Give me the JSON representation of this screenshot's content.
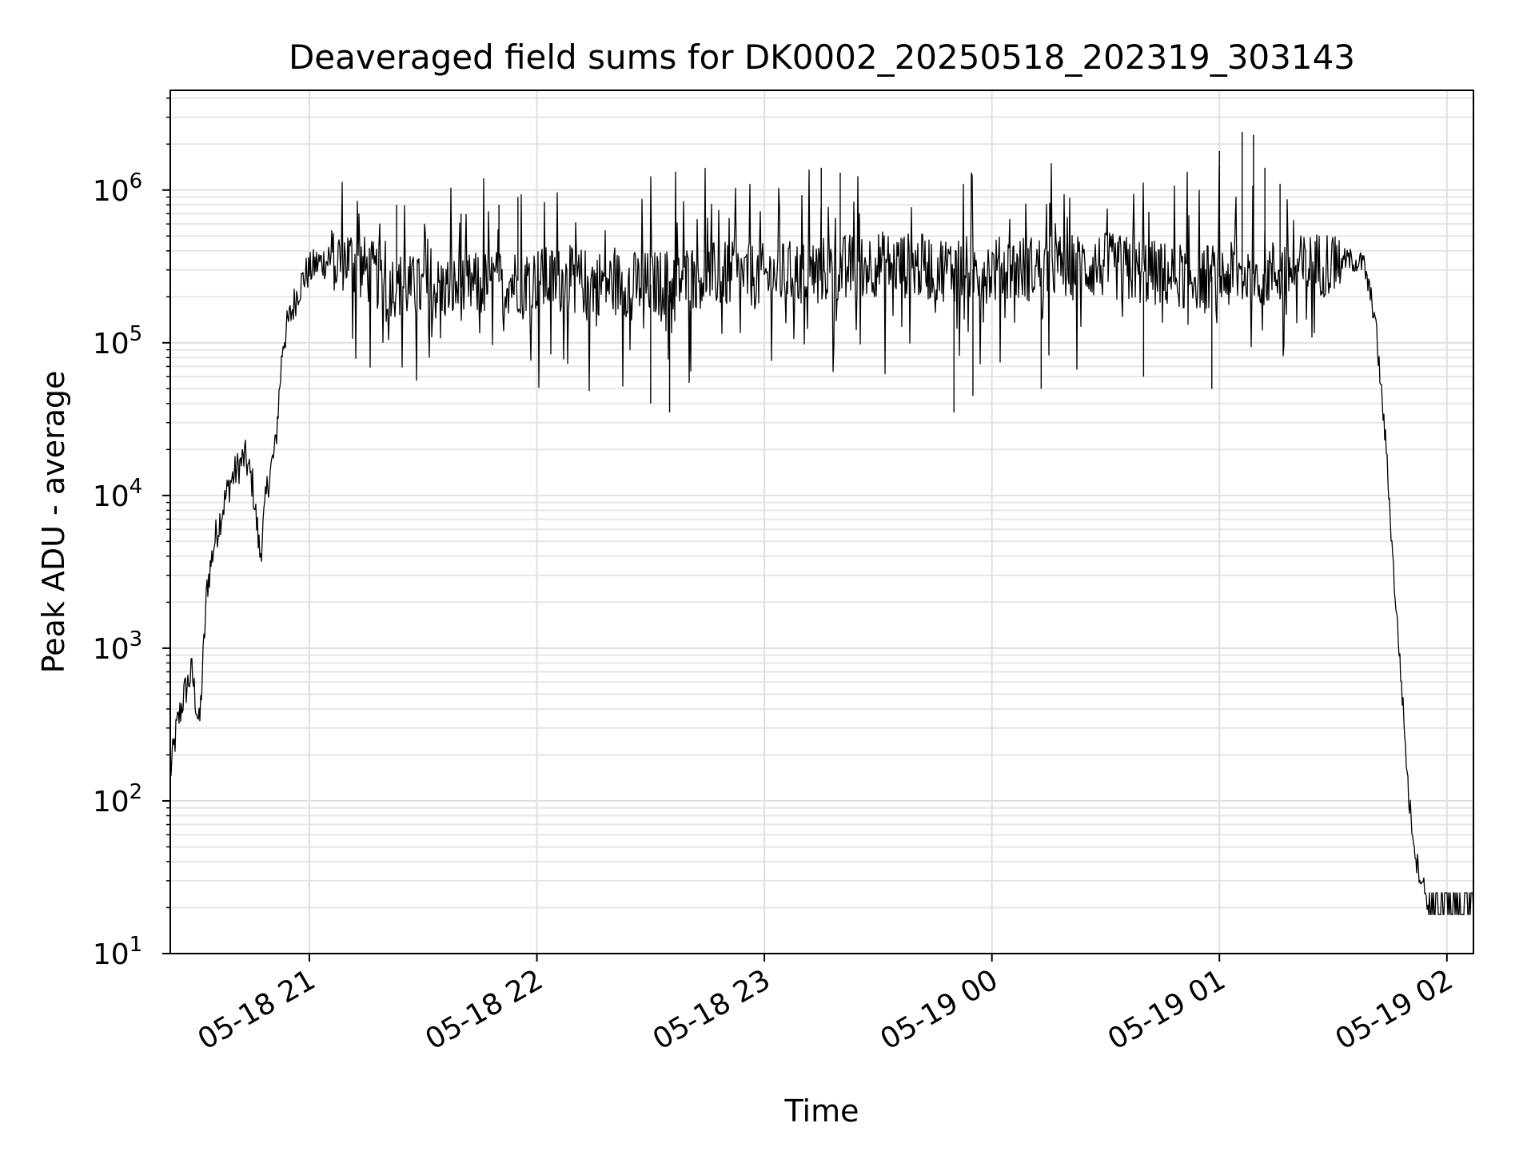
{
  "chart_data": {
    "type": "line",
    "title": "Deaveraged field sums for DK0002_20250518_202319_303143",
    "xlabel": "Time",
    "ylabel": "Peak ADU - average",
    "yscale": "log",
    "ylim": [
      10,
      4500000.0
    ],
    "xlim": [
      "2025-05-18 20:23:19",
      "2025-05-19 02:07:00"
    ],
    "grid": true,
    "x_tick_labels": [
      "05-18 21",
      "05-18 22",
      "05-18 23",
      "05-19 00",
      "05-19 01",
      "05-19 02"
    ],
    "x_ticks": [
      "2025-05-18 21:00",
      "2025-05-18 22:00",
      "2025-05-18 23:00",
      "2025-05-19 00:00",
      "2025-05-19 01:00",
      "2025-05-19 02:00"
    ],
    "y_tick_labels": [
      {
        "base": "10",
        "exp": "1"
      },
      {
        "base": "10",
        "exp": "2"
      },
      {
        "base": "10",
        "exp": "3"
      },
      {
        "base": "10",
        "exp": "4"
      },
      {
        "base": "10",
        "exp": "5"
      },
      {
        "base": "10",
        "exp": "6"
      }
    ],
    "series": [
      {
        "color": "#000000",
        "x": [
          "2025-05-18 20:23:19",
          "2025-05-18 20:25",
          "2025-05-18 20:27",
          "2025-05-18 20:29",
          "2025-05-18 20:31",
          "2025-05-18 20:33",
          "2025-05-18 20:35",
          "2025-05-18 20:37",
          "2025-05-18 20:39",
          "2025-05-18 20:41",
          "2025-05-18 20:43",
          "2025-05-18 20:45",
          "2025-05-18 20:47",
          "2025-05-18 20:49",
          "2025-05-18 20:51",
          "2025-05-18 20:53",
          "2025-05-18 20:55",
          "2025-05-18 20:57",
          "2025-05-18 20:59",
          "2025-05-18 21:02",
          "2025-05-18 21:06",
          "2025-05-18 21:10",
          "2025-05-18 21:15",
          "2025-05-18 21:20",
          "2025-05-18 21:30",
          "2025-05-18 21:40",
          "2025-05-18 21:50",
          "2025-05-18 22:00",
          "2025-05-18 22:15",
          "2025-05-18 22:30",
          "2025-05-18 22:45",
          "2025-05-18 23:00",
          "2025-05-18 23:15",
          "2025-05-18 23:30",
          "2025-05-18 23:45",
          "2025-05-19 00:00",
          "2025-05-19 00:15",
          "2025-05-19 00:30",
          "2025-05-19 00:45",
          "2025-05-19 01:00",
          "2025-05-19 01:15",
          "2025-05-19 01:25",
          "2025-05-19 01:30",
          "2025-05-19 01:34",
          "2025-05-19 01:38",
          "2025-05-19 01:41",
          "2025-05-19 01:44",
          "2025-05-19 01:46",
          "2025-05-19 01:48",
          "2025-05-19 01:50",
          "2025-05-19 01:52",
          "2025-05-19 01:55",
          "2025-05-19 02:00",
          "2025-05-19 02:07"
        ],
        "y": [
          150,
          300,
          500,
          700,
          300,
          2500,
          5000,
          8000,
          12000,
          15000,
          18000,
          12000,
          4000,
          12000,
          20000,
          100000,
          150000,
          220000,
          280000,
          330000,
          350000,
          360000,
          300000,
          250000,
          220000,
          230000,
          250000,
          260000,
          250000,
          240000,
          280000,
          270000,
          300000,
          330000,
          310000,
          300000,
          310000,
          320000,
          280000,
          270000,
          290000,
          320000,
          340000,
          350000,
          330000,
          150000,
          20000,
          3000,
          600,
          100,
          40,
          22,
          20,
          20
        ]
      }
    ],
    "spikes": [
      {
        "x": "2025-05-18 21:23",
        "y": 800000
      },
      {
        "x": "2025-05-18 21:40",
        "y": 700000
      },
      {
        "x": "2025-05-18 21:50",
        "y": 800000
      },
      {
        "x": "2025-05-18 21:55",
        "y": 900000
      },
      {
        "x": "2025-05-18 22:30",
        "y": 40000
      },
      {
        "x": "2025-05-18 22:35",
        "y": 35000
      },
      {
        "x": "2025-05-18 23:15",
        "y": 1400000
      },
      {
        "x": "2025-05-18 23:20",
        "y": 1300000
      },
      {
        "x": "2025-05-18 23:50",
        "y": 35000
      },
      {
        "x": "2025-05-18 23:55",
        "y": 45000
      },
      {
        "x": "2025-05-19 00:13",
        "y": 50000
      },
      {
        "x": "2025-05-19 00:40",
        "y": 60000
      },
      {
        "x": "2025-05-19 00:58",
        "y": 50000
      },
      {
        "x": "2025-05-19 01:00",
        "y": 1800000
      },
      {
        "x": "2025-05-19 01:06",
        "y": 2400000
      },
      {
        "x": "2025-05-19 01:09",
        "y": 2300000
      },
      {
        "x": "2025-05-19 01:12",
        "y": 1400000
      },
      {
        "x": "2025-05-19 01:16",
        "y": 1100000
      }
    ]
  }
}
